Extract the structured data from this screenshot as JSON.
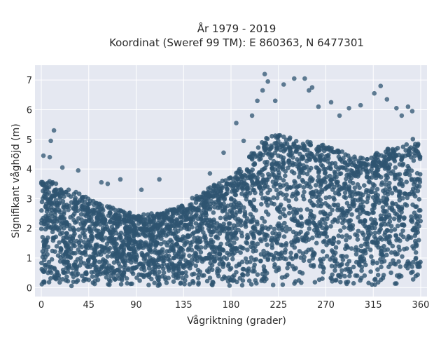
{
  "chart_data": {
    "type": "scatter",
    "title": "År 1979 - 2019",
    "subtitle": "Koordinat (Sweref 99 TM): E 860363, N 6477301",
    "xlabel": "Vågriktning (grader)",
    "ylabel": "Signifikant våghöjd (m)",
    "xlim": [
      -6,
      366
    ],
    "ylim": [
      -0.3,
      7.5
    ],
    "xticks": [
      0,
      45,
      90,
      135,
      180,
      225,
      270,
      315,
      360
    ],
    "yticks": [
      0,
      1,
      2,
      3,
      4,
      5,
      6,
      7
    ],
    "grid": true,
    "legend": "none",
    "colors": {
      "background": "#e5e8f1",
      "grid": "#ffffff",
      "marker": "#2e5470"
    },
    "envelope": {
      "x": [
        0,
        10,
        20,
        30,
        45,
        60,
        75,
        90,
        105,
        120,
        135,
        150,
        165,
        180,
        195,
        200,
        210,
        225,
        240,
        255,
        270,
        285,
        300,
        315,
        330,
        345,
        355,
        360
      ],
      "ymax": [
        3.7,
        3.6,
        3.4,
        3.3,
        3.0,
        2.8,
        2.6,
        2.5,
        2.5,
        2.6,
        2.8,
        3.2,
        3.5,
        3.8,
        4.3,
        4.6,
        5.0,
        5.2,
        5.0,
        4.9,
        4.8,
        4.6,
        4.4,
        4.5,
        4.7,
        4.9,
        5.1,
        4.8
      ]
    },
    "outliers": [
      {
        "x": 12,
        "y": 5.3
      },
      {
        "x": 9,
        "y": 4.95
      },
      {
        "x": 2,
        "y": 4.45
      },
      {
        "x": 8,
        "y": 4.4
      },
      {
        "x": 20,
        "y": 4.05
      },
      {
        "x": 35,
        "y": 3.95
      },
      {
        "x": 57,
        "y": 3.55
      },
      {
        "x": 63,
        "y": 3.5
      },
      {
        "x": 75,
        "y": 3.65
      },
      {
        "x": 95,
        "y": 3.3
      },
      {
        "x": 112,
        "y": 3.65
      },
      {
        "x": 160,
        "y": 3.85
      },
      {
        "x": 173,
        "y": 4.55
      },
      {
        "x": 185,
        "y": 5.55
      },
      {
        "x": 192,
        "y": 4.95
      },
      {
        "x": 200,
        "y": 5.8
      },
      {
        "x": 205,
        "y": 6.3
      },
      {
        "x": 212,
        "y": 7.2
      },
      {
        "x": 215,
        "y": 6.95
      },
      {
        "x": 210,
        "y": 6.65
      },
      {
        "x": 222,
        "y": 6.3
      },
      {
        "x": 230,
        "y": 6.85
      },
      {
        "x": 240,
        "y": 7.05
      },
      {
        "x": 250,
        "y": 7.05
      },
      {
        "x": 257,
        "y": 6.75
      },
      {
        "x": 254,
        "y": 6.65
      },
      {
        "x": 263,
        "y": 6.1
      },
      {
        "x": 275,
        "y": 6.25
      },
      {
        "x": 283,
        "y": 5.8
      },
      {
        "x": 292,
        "y": 6.05
      },
      {
        "x": 303,
        "y": 6.15
      },
      {
        "x": 316,
        "y": 6.55
      },
      {
        "x": 322,
        "y": 6.8
      },
      {
        "x": 328,
        "y": 6.35
      },
      {
        "x": 337,
        "y": 6.05
      },
      {
        "x": 348,
        "y": 6.1
      },
      {
        "x": 352,
        "y": 5.95
      },
      {
        "x": 342,
        "y": 5.8
      }
    ],
    "point_count": 3400
  }
}
